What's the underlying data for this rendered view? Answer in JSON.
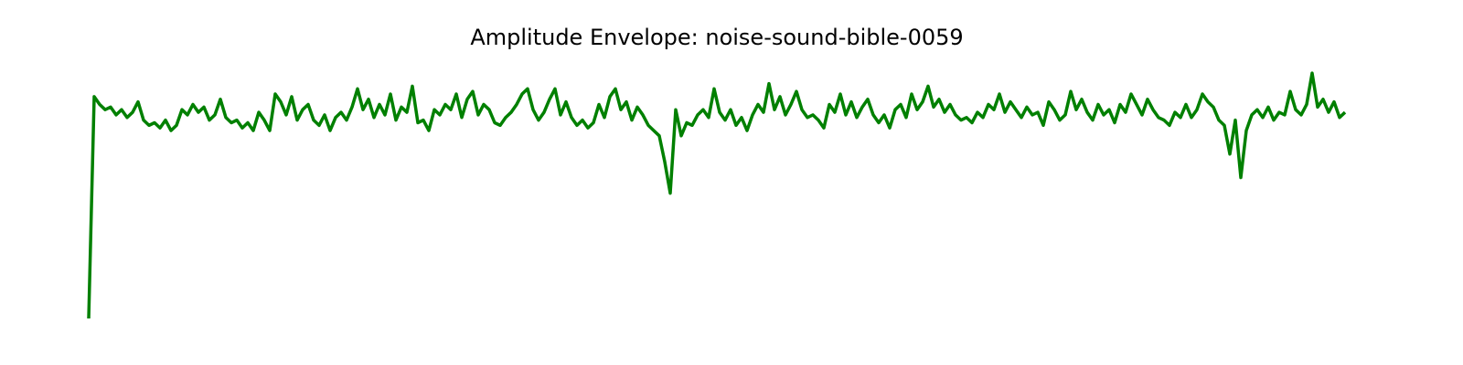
{
  "chart_data": {
    "type": "line",
    "title": "Amplitude Envelope: noise-sound-bible-0059",
    "color": "#008000",
    "ylim": [
      0,
      1
    ],
    "values": [
      0,
      0.85,
      0.82,
      0.8,
      0.81,
      0.78,
      0.8,
      0.77,
      0.79,
      0.83,
      0.76,
      0.74,
      0.75,
      0.73,
      0.76,
      0.72,
      0.74,
      0.8,
      0.78,
      0.82,
      0.79,
      0.81,
      0.76,
      0.78,
      0.84,
      0.77,
      0.75,
      0.76,
      0.73,
      0.75,
      0.72,
      0.79,
      0.76,
      0.72,
      0.86,
      0.83,
      0.78,
      0.85,
      0.76,
      0.8,
      0.82,
      0.76,
      0.74,
      0.78,
      0.72,
      0.77,
      0.79,
      0.76,
      0.81,
      0.88,
      0.8,
      0.84,
      0.77,
      0.82,
      0.78,
      0.86,
      0.76,
      0.81,
      0.79,
      0.89,
      0.75,
      0.76,
      0.72,
      0.8,
      0.78,
      0.82,
      0.8,
      0.86,
      0.77,
      0.84,
      0.87,
      0.78,
      0.82,
      0.8,
      0.75,
      0.74,
      0.77,
      0.79,
      0.82,
      0.86,
      0.88,
      0.8,
      0.76,
      0.79,
      0.84,
      0.88,
      0.78,
      0.83,
      0.77,
      0.74,
      0.76,
      0.73,
      0.75,
      0.82,
      0.77,
      0.85,
      0.88,
      0.8,
      0.83,
      0.76,
      0.81,
      0.78,
      0.74,
      0.72,
      0.7,
      0.6,
      0.48,
      0.8,
      0.7,
      0.75,
      0.74,
      0.78,
      0.8,
      0.77,
      0.88,
      0.79,
      0.76,
      0.8,
      0.74,
      0.77,
      0.72,
      0.78,
      0.82,
      0.79,
      0.9,
      0.8,
      0.85,
      0.78,
      0.82,
      0.87,
      0.8,
      0.77,
      0.78,
      0.76,
      0.73,
      0.82,
      0.79,
      0.86,
      0.78,
      0.83,
      0.77,
      0.81,
      0.84,
      0.78,
      0.75,
      0.78,
      0.73,
      0.8,
      0.82,
      0.77,
      0.86,
      0.8,
      0.83,
      0.89,
      0.81,
      0.84,
      0.79,
      0.82,
      0.78,
      0.76,
      0.77,
      0.75,
      0.79,
      0.77,
      0.82,
      0.8,
      0.86,
      0.79,
      0.83,
      0.8,
      0.77,
      0.81,
      0.78,
      0.79,
      0.74,
      0.83,
      0.8,
      0.76,
      0.78,
      0.87,
      0.8,
      0.84,
      0.79,
      0.76,
      0.82,
      0.78,
      0.8,
      0.75,
      0.82,
      0.79,
      0.86,
      0.82,
      0.78,
      0.84,
      0.8,
      0.77,
      0.76,
      0.74,
      0.79,
      0.77,
      0.82,
      0.77,
      0.8,
      0.86,
      0.83,
      0.81,
      0.76,
      0.74,
      0.63,
      0.76,
      0.54,
      0.72,
      0.78,
      0.8,
      0.77,
      0.81,
      0.76,
      0.79,
      0.78,
      0.87,
      0.8,
      0.78,
      0.82,
      0.94,
      0.81,
      0.84,
      0.79,
      0.83,
      0.77,
      0.79
    ]
  }
}
